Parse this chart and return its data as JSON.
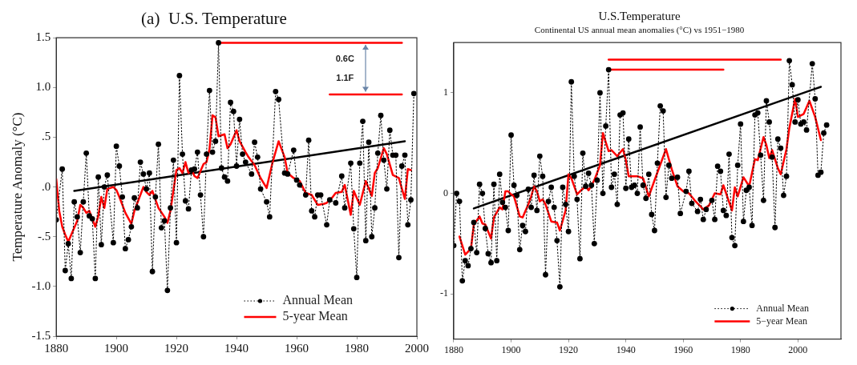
{
  "chart_data": [
    {
      "type": "line",
      "title": "(a)  U.S. Temperature",
      "ylabel": "Temperature Anomaly (°C)",
      "xlim": [
        1880,
        2000
      ],
      "xticks": [
        1880,
        1900,
        1920,
        1940,
        1960,
        1980,
        2000
      ],
      "ylim": [
        -1.5,
        1.5
      ],
      "yticks": [
        {
          "value": -1.5,
          "label": "-1.5"
        },
        {
          "value": -1,
          "label": "-1.0"
        },
        {
          "value": -0.5,
          "label": "-.5"
        },
        {
          "value": 0,
          "label": ".0"
        },
        {
          "value": 0.5,
          "label": ".5"
        },
        {
          "value": 1,
          "label": "1.0"
        },
        {
          "value": 1.5,
          "label": "1.5"
        }
      ],
      "grid": false,
      "legend": "bottom right",
      "annotations": [
        "0.6C",
        "1.1F"
      ],
      "series": [
        {
          "name": "Annual Mean",
          "color": "#000000",
          "marker": "circle",
          "line_style": "dotted",
          "x": [
            1880,
            1882,
            1883,
            1884,
            1885,
            1886,
            1887,
            1888,
            1889,
            1890,
            1891,
            1892,
            1893,
            1894,
            1895,
            1896,
            1897,
            1899,
            1900,
            1901,
            1902,
            1903,
            1904,
            1905,
            1906,
            1907,
            1908,
            1909,
            1910,
            1911,
            1912,
            1913,
            1914,
            1915,
            1916,
            1917,
            1918,
            1919,
            1920,
            1921,
            1922,
            1923,
            1924,
            1925,
            1926,
            1927,
            1928,
            1929,
            1930,
            1931,
            1932,
            1933,
            1934,
            1935,
            1936,
            1937,
            1938,
            1939,
            1940,
            1941,
            1942,
            1943,
            1945,
            1946,
            1947,
            1948,
            1950,
            1951,
            1953,
            1954,
            1956,
            1957,
            1959,
            1960,
            1961,
            1963,
            1964,
            1965,
            1966,
            1967,
            1968,
            1970,
            1971,
            1973,
            1975,
            1976,
            1978,
            1979,
            1980,
            1981,
            1982,
            1983,
            1984,
            1985,
            1986,
            1987,
            1988,
            1989,
            1990,
            1991,
            1992,
            1993,
            1994,
            1995,
            1996,
            1997,
            1998,
            1999
          ],
          "values": [
            -0.33,
            0.18,
            -0.84,
            -0.57,
            -0.92,
            -0.15,
            -0.3,
            -0.66,
            -0.15,
            0.34,
            -0.29,
            -0.32,
            -0.92,
            0.1,
            -0.58,
            0.0,
            0.12,
            -0.56,
            0.41,
            0.21,
            -0.1,
            -0.62,
            -0.53,
            -0.4,
            -0.11,
            -0.21,
            0.25,
            0.13,
            -0.02,
            0.14,
            -0.85,
            -0.1,
            0.43,
            -0.41,
            -0.34,
            -1.04,
            -0.21,
            0.27,
            -0.56,
            1.12,
            0.33,
            -0.14,
            -0.22,
            0.17,
            0.18,
            0.35,
            -0.08,
            -0.5,
            0.33,
            0.97,
            0.35,
            0.46,
            1.45,
            0.19,
            0.1,
            0.06,
            0.85,
            0.76,
            0.21,
            0.68,
            0.33,
            0.25,
            0.13,
            0.45,
            0.3,
            -0.02,
            -0.15,
            -0.3,
            0.96,
            0.88,
            0.14,
            0.13,
            0.37,
            0.07,
            0.02,
            -0.08,
            0.47,
            -0.24,
            -0.3,
            -0.08,
            -0.08,
            -0.38,
            -0.13,
            -0.16,
            0.11,
            -0.21,
            0.24,
            -0.42,
            -0.91,
            0.24,
            0.66,
            -0.54,
            0.45,
            -0.5,
            -0.21,
            0.34,
            0.72,
            0.27,
            -0.02,
            0.57,
            0.32,
            0.32,
            -0.71,
            0.21,
            0.32,
            -0.38,
            -0.13,
            0.94
          ]
        },
        {
          "name": "5-year Mean",
          "color": "#ff0000",
          "marker": "none",
          "line_style": "solid",
          "x": [
            1880,
            1881,
            1882,
            1883,
            1884,
            1885,
            1887,
            1888,
            1889,
            1890,
            1891,
            1893,
            1894,
            1895,
            1896,
            1897,
            1899,
            1900,
            1901,
            1903,
            1905,
            1906,
            1908,
            1909,
            1910,
            1911,
            1912,
            1914,
            1916,
            1917,
            1918,
            1920,
            1921,
            1922,
            1923,
            1924,
            1925,
            1926,
            1927,
            1929,
            1930,
            1931,
            1932,
            1933,
            1934,
            1936,
            1937,
            1938,
            1940,
            1941,
            1943,
            1944,
            1946,
            1948,
            1950,
            1952,
            1954,
            1956,
            1957,
            1959,
            1961,
            1963,
            1965,
            1967,
            1969,
            1970,
            1972,
            1973,
            1975,
            1976,
            1978,
            1979,
            1981,
            1983,
            1985,
            1986,
            1987,
            1989,
            1990,
            1992,
            1994,
            1996,
            1997,
            1998
          ],
          "values": [
            0.08,
            -0.24,
            -0.4,
            -0.48,
            -0.55,
            -0.48,
            -0.34,
            -0.18,
            -0.21,
            -0.26,
            -0.24,
            -0.4,
            -0.29,
            -0.1,
            -0.21,
            -0.02,
            0.0,
            -0.03,
            -0.1,
            -0.26,
            -0.37,
            -0.24,
            -0.08,
            0.0,
            -0.05,
            -0.08,
            -0.04,
            -0.21,
            -0.3,
            -0.36,
            -0.24,
            0.17,
            0.19,
            0.14,
            0.25,
            0.14,
            0.18,
            0.11,
            0.09,
            0.23,
            0.25,
            0.38,
            0.72,
            0.7,
            0.51,
            0.53,
            0.39,
            0.43,
            0.57,
            0.46,
            0.35,
            0.3,
            0.22,
            0.09,
            -0.01,
            0.25,
            0.46,
            0.3,
            0.14,
            0.09,
            0.06,
            -0.06,
            -0.08,
            -0.18,
            -0.17,
            -0.16,
            -0.1,
            -0.06,
            -0.05,
            0.02,
            -0.28,
            -0.04,
            -0.18,
            0.06,
            -0.09,
            0.14,
            0.19,
            0.39,
            0.33,
            0.12,
            0.09,
            -0.12,
            0.18,
            0.17
          ]
        },
        {
          "color": "#000000",
          "marker": "none",
          "line_style": "solid",
          "x": [
            1886,
            1996
          ],
          "values": [
            -0.04,
            0.46
          ]
        },
        {
          "color": "#ff0000",
          "marker": "none",
          "line_style": "solid",
          "x": [
            1934,
            1995
          ],
          "values": [
            1.45,
            1.45
          ]
        },
        {
          "color": "#ff0000",
          "marker": "none",
          "line_style": "solid",
          "x": [
            1971,
            1995
          ],
          "values": [
            0.93,
            0.93
          ]
        }
      ]
    },
    {
      "type": "line",
      "title": "U.S.Temperature",
      "subtitle": "Continental US annual mean anomalies (°C) vs 1951−1980",
      "xlim": [
        1880,
        2015
      ],
      "xticks": [
        1880,
        1900,
        1920,
        1940,
        1960,
        1980,
        2000
      ],
      "ylim": [
        -1.45,
        1.5
      ],
      "yticks": [
        -1,
        0,
        1
      ],
      "grid": false,
      "legend": "bottom right",
      "series": [
        {
          "name": "Annual Mean",
          "color": "#000000",
          "marker": "circle",
          "line_style": "dotted",
          "x": [
            1880,
            1881,
            1882,
            1883,
            1884,
            1885,
            1886,
            1887,
            1888,
            1889,
            1890,
            1891,
            1892,
            1893,
            1894,
            1895,
            1896,
            1897,
            1898,
            1899,
            1900,
            1901,
            1902,
            1903,
            1904,
            1905,
            1906,
            1907,
            1908,
            1909,
            1910,
            1911,
            1912,
            1913,
            1914,
            1915,
            1916,
            1917,
            1918,
            1919,
            1920,
            1921,
            1922,
            1923,
            1924,
            1925,
            1926,
            1927,
            1928,
            1929,
            1930,
            1931,
            1932,
            1933,
            1934,
            1935,
            1936,
            1937,
            1938,
            1939,
            1940,
            1941,
            1942,
            1943,
            1944,
            1945,
            1946,
            1947,
            1948,
            1949,
            1950,
            1951,
            1952,
            1953,
            1954,
            1955,
            1956,
            1958,
            1959,
            1961,
            1962,
            1963,
            1965,
            1966,
            1967,
            1968,
            1970,
            1971,
            1972,
            1973,
            1974,
            1975,
            1976,
            1977,
            1978,
            1979,
            1980,
            1981,
            1982,
            1983,
            1984,
            1985,
            1986,
            1987,
            1988,
            1989,
            1990,
            1991,
            1992,
            1993,
            1994,
            1995,
            1996,
            1997,
            1998,
            1999,
            2000,
            2001,
            2002,
            2003,
            2005,
            2006,
            2007,
            2008,
            2009,
            2010
          ],
          "values": [
            -0.52,
            0.0,
            -0.08,
            -0.87,
            -0.67,
            -0.72,
            -0.55,
            -0.29,
            -0.59,
            0.09,
            0.0,
            -0.35,
            -0.6,
            -0.69,
            0.09,
            -0.67,
            0.19,
            -0.09,
            -0.14,
            -0.37,
            0.58,
            0.08,
            -0.02,
            -0.56,
            -0.32,
            -0.38,
            0.04,
            -0.14,
            0.18,
            -0.17,
            0.37,
            0.17,
            -0.81,
            -0.08,
            0.06,
            -0.14,
            -0.47,
            -0.93,
            0.06,
            -0.11,
            -0.38,
            1.11,
            0.17,
            -0.06,
            -0.65,
            0.4,
            0.07,
            0.2,
            0.08,
            -0.5,
            0.13,
            1.0,
            0.0,
            0.67,
            1.23,
            0.06,
            0.19,
            -0.11,
            0.78,
            0.8,
            0.05,
            0.54,
            0.06,
            0.08,
            0.0,
            0.66,
            0.08,
            -0.05,
            0.19,
            -0.21,
            -0.37,
            0.3,
            0.87,
            0.82,
            -0.04,
            0.28,
            0.15,
            0.16,
            -0.2,
            0.02,
            0.22,
            -0.1,
            -0.18,
            -0.06,
            -0.26,
            -0.16,
            -0.07,
            -0.26,
            0.27,
            0.22,
            -0.17,
            -0.22,
            0.39,
            -0.44,
            -0.52,
            0.28,
            0.69,
            -0.28,
            0.03,
            0.06,
            -0.32,
            0.78,
            0.8,
            0.38,
            -0.07,
            0.92,
            0.71,
            0.36,
            -0.34,
            0.54,
            0.45,
            -0.02,
            0.17,
            1.32,
            1.08,
            0.71,
            0.93,
            0.69,
            0.71,
            0.63,
            1.29,
            0.94,
            0.18,
            0.21,
            0.6,
            0.68
          ]
        },
        {
          "name": "5−year Mean",
          "color": "#ff0000",
          "marker": "none",
          "line_style": "solid",
          "x": [
            1882,
            1884,
            1886,
            1887,
            1889,
            1890,
            1891,
            1893,
            1894,
            1896,
            1897,
            1898,
            1899,
            1900,
            1901,
            1903,
            1904,
            1906,
            1907,
            1908,
            1909,
            1910,
            1911,
            1912,
            1914,
            1916,
            1917,
            1919,
            1920,
            1921,
            1923,
            1924,
            1926,
            1927,
            1929,
            1931,
            1932,
            1933,
            1934,
            1935,
            1937,
            1939,
            1940,
            1941,
            1944,
            1946,
            1948,
            1950,
            1954,
            1956,
            1958,
            1960,
            1962,
            1964,
            1967,
            1969,
            1971,
            1973,
            1974,
            1977,
            1978,
            1979,
            1981,
            1983,
            1985,
            1986,
            1988,
            1989,
            1990,
            1991,
            1993,
            1994,
            1996,
            1997,
            1999,
            2000,
            2002,
            2004,
            2006,
            2008
          ],
          "values": [
            -0.43,
            -0.61,
            -0.55,
            -0.31,
            -0.23,
            -0.3,
            -0.31,
            -0.45,
            -0.24,
            -0.14,
            -0.16,
            0.02,
            0.02,
            -0.01,
            -0.03,
            -0.23,
            -0.24,
            -0.11,
            -0.03,
            0.07,
            0.02,
            -0.08,
            -0.06,
            -0.11,
            -0.28,
            -0.29,
            -0.37,
            -0.17,
            0.19,
            0.15,
            -0.01,
            0.02,
            0.07,
            0.03,
            0.13,
            0.28,
            0.6,
            0.51,
            0.42,
            0.43,
            0.37,
            0.44,
            0.33,
            0.17,
            0.17,
            0.15,
            -0.03,
            0.13,
            0.44,
            0.24,
            0.07,
            0.02,
            0.0,
            -0.07,
            -0.16,
            -0.12,
            0.0,
            -0.01,
            0.08,
            -0.17,
            0.06,
            -0.03,
            0.16,
            0.07,
            0.34,
            0.33,
            0.56,
            0.48,
            0.35,
            0.43,
            0.25,
            0.19,
            0.44,
            0.65,
            0.94,
            0.76,
            0.79,
            0.92,
            0.76,
            0.53
          ]
        },
        {
          "color": "#000000",
          "marker": "none",
          "line_style": "solid",
          "x": [
            1887,
            2008
          ],
          "values": [
            -0.15,
            1.06
          ]
        },
        {
          "color": "#ff0000",
          "marker": "none",
          "line_style": "solid",
          "x": [
            1934,
            1994
          ],
          "values": [
            1.33,
            1.33
          ]
        },
        {
          "color": "#ff0000",
          "marker": "none",
          "line_style": "solid",
          "x": [
            1935,
            1974
          ],
          "values": [
            1.23,
            1.23
          ]
        }
      ]
    }
  ]
}
